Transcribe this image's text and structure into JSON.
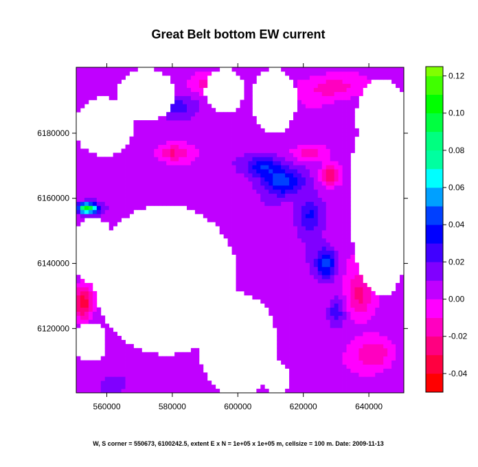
{
  "chart_data": {
    "type": "heatmap",
    "title": "Great Belt bottom EW current",
    "caption": "W, S corner = 550673, 6100242.5, extent E x N = 1e+05 x 1e+05 m, cellsize = 100 m. Date: 2009-11-13",
    "xlim": [
      550673,
      650673
    ],
    "ylim": [
      6100242.5,
      6200242.5
    ],
    "x_ticks": [
      560000,
      580000,
      600000,
      620000,
      640000
    ],
    "y_ticks": [
      6120000,
      6140000,
      6160000,
      6180000
    ],
    "x_tick_labels": [
      "560000",
      "580000",
      "600000",
      "620000",
      "640000"
    ],
    "y_tick_labels": [
      "6120000",
      "6140000",
      "6160000",
      "6180000"
    ],
    "colorbar": {
      "breaks": [
        -0.05,
        -0.04,
        -0.03,
        -0.02,
        -0.01,
        0.0,
        0.01,
        0.02,
        0.03,
        0.04,
        0.05,
        0.06,
        0.07,
        0.08,
        0.09,
        0.1,
        0.11,
        0.12,
        0.125
      ],
      "colors": [
        "#ff0000",
        "#ff0040",
        "#ff0080",
        "#ff00c0",
        "#ff00ff",
        "#c000ff",
        "#8000ff",
        "#4000ff",
        "#0000ff",
        "#0040ff",
        "#00a0ff",
        "#00ffff",
        "#00ffa0",
        "#00ff80",
        "#00ff40",
        "#00ff00",
        "#40ff00",
        "#80ff00"
      ],
      "tick_values": [
        -0.04,
        -0.02,
        0.0,
        0.02,
        0.04,
        0.06,
        0.08,
        0.1,
        0.12
      ],
      "tick_labels": [
        "-0.04",
        "-0.02",
        "0.00",
        "0.02",
        "0.04",
        "0.06",
        "0.08",
        "0.10",
        "0.12"
      ]
    },
    "background_value": 0.005,
    "features": [
      {
        "x": 608000,
        "y": 6170000,
        "value": 0.04,
        "rx": 5500,
        "ry": 3500
      },
      {
        "x": 614000,
        "y": 6165000,
        "value": 0.045,
        "rx": 6000,
        "ry": 4000
      },
      {
        "x": 622000,
        "y": 6155000,
        "value": 0.035,
        "rx": 4000,
        "ry": 6000
      },
      {
        "x": 627000,
        "y": 6140000,
        "value": 0.045,
        "rx": 3000,
        "ry": 4500
      },
      {
        "x": 630000,
        "y": 6125000,
        "value": 0.025,
        "rx": 2500,
        "ry": 4000
      },
      {
        "x": 554000,
        "y": 6157000,
        "value": 0.11,
        "rx": 3000,
        "ry": 1500
      },
      {
        "x": 580000,
        "y": 6188000,
        "value": 0.025,
        "rx": 6000,
        "ry": 3000
      },
      {
        "x": 590000,
        "y": 6195000,
        "value": -0.015,
        "rx": 5000,
        "ry": 3000
      },
      {
        "x": 630000,
        "y": 6194000,
        "value": -0.015,
        "rx": 10000,
        "ry": 4000
      },
      {
        "x": 628000,
        "y": 6167000,
        "value": -0.03,
        "rx": 3000,
        "ry": 3000
      },
      {
        "x": 622000,
        "y": 6174000,
        "value": -0.02,
        "rx": 5000,
        "ry": 2500
      },
      {
        "x": 580000,
        "y": 6174000,
        "value": -0.02,
        "rx": 5000,
        "ry": 2500
      },
      {
        "x": 637000,
        "y": 6130000,
        "value": -0.025,
        "rx": 4000,
        "ry": 7000
      },
      {
        "x": 553000,
        "y": 6128000,
        "value": -0.035,
        "rx": 3000,
        "ry": 5000
      },
      {
        "x": 562000,
        "y": 6103000,
        "value": 0.02,
        "rx": 4000,
        "ry": 2500
      },
      {
        "x": 642000,
        "y": 6112000,
        "value": -0.02,
        "rx": 6000,
        "ry": 5000
      }
    ],
    "white_regions": [
      {
        "x": 578000,
        "y": 6135000,
        "rx": 22000,
        "ry": 23000
      },
      {
        "x": 600000,
        "y": 6115000,
        "rx": 12000,
        "ry": 16000
      },
      {
        "x": 612000,
        "y": 6105000,
        "rx": 4000,
        "ry": 5000
      },
      {
        "x": 572000,
        "y": 6192000,
        "rx": 9000,
        "ry": 8000
      },
      {
        "x": 596000,
        "y": 6193000,
        "rx": 6000,
        "ry": 7000
      },
      {
        "x": 611000,
        "y": 6190000,
        "rx": 7000,
        "ry": 10000
      },
      {
        "x": 644000,
        "y": 6160000,
        "rx": 10000,
        "ry": 30000
      },
      {
        "x": 644000,
        "y": 6185000,
        "rx": 8000,
        "ry": 12000
      },
      {
        "x": 559000,
        "y": 6182000,
        "rx": 9000,
        "ry": 9000
      },
      {
        "x": 556000,
        "y": 6144000,
        "rx": 7000,
        "ry": 10000
      },
      {
        "x": 555000,
        "y": 6116000,
        "rx": 5000,
        "ry": 6000
      }
    ]
  }
}
